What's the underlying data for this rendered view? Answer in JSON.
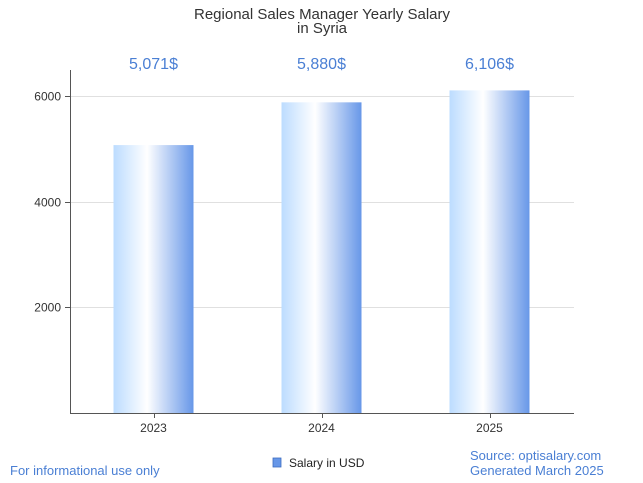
{
  "chart_data": {
    "type": "bar",
    "title_line1": "Regional Sales Manager Yearly Salary",
    "title_line2": "in Syria",
    "categories": [
      "2023",
      "2024",
      "2025"
    ],
    "series": [
      {
        "name": "Salary in USD",
        "values": [
          5071,
          5880,
          6106
        ],
        "labels": [
          "5,071$",
          "5,880$",
          "6,106$"
        ]
      }
    ],
    "y_ticks": [
      2000,
      4000,
      6000
    ],
    "ylim": [
      0,
      6500
    ],
    "grid": true,
    "legend_position": "bottom-center"
  },
  "footer": {
    "left_note": "For informational use only",
    "source": "Source: optisalary.com",
    "generated": "Generated March 2025"
  },
  "colors": {
    "accent": "#4a7fd4",
    "value_label": "#4a7fd4",
    "footer_text": "#4a7fd4",
    "bar_light": "#bcdcff",
    "bar_white": "#ffffff",
    "bar_dark": "#6797e8",
    "grid": "#e0e0e0",
    "axis": "#555555"
  }
}
